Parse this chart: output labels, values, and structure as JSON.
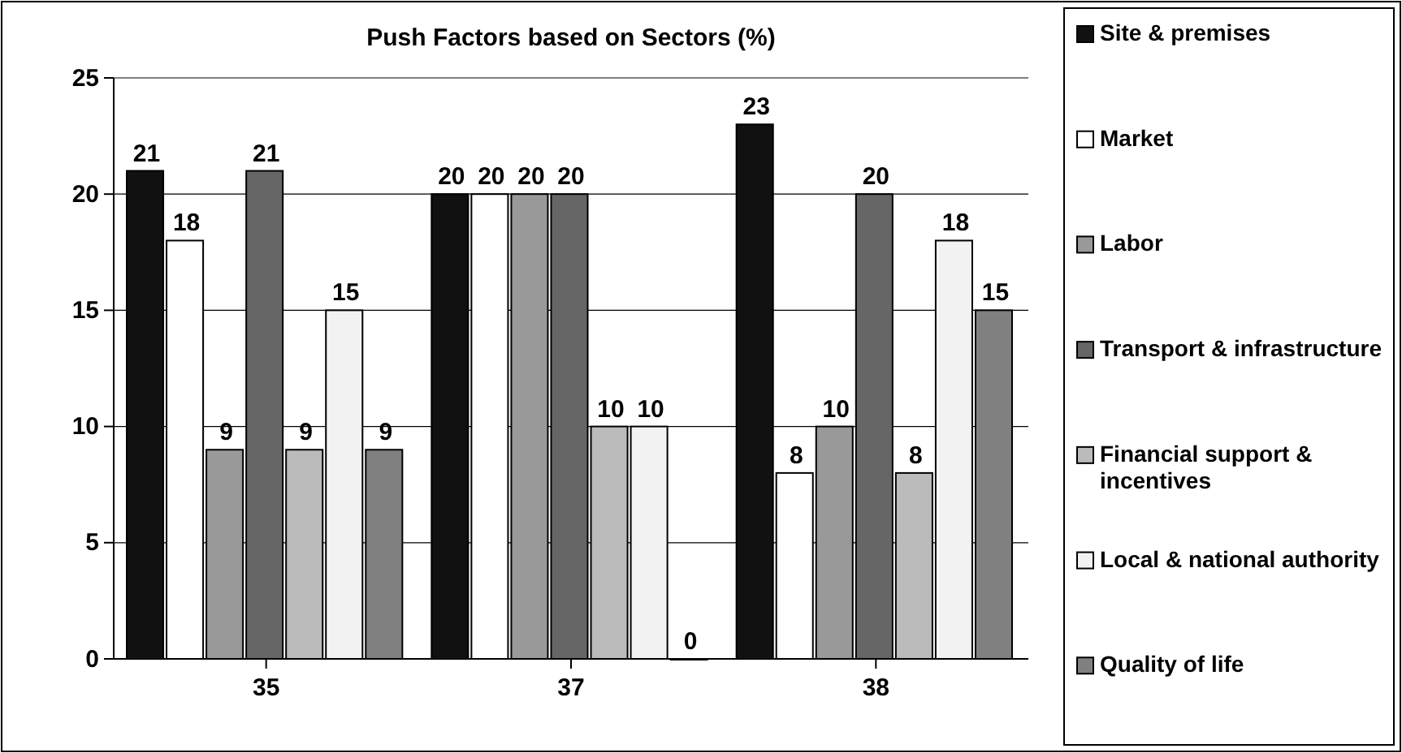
{
  "chart_data": {
    "type": "bar",
    "title": "Push Factors based on Sectors (%)",
    "categories": [
      "35",
      "37",
      "38"
    ],
    "series": [
      {
        "name": "Site & premises",
        "color": "#111111",
        "values": [
          21,
          20,
          23
        ]
      },
      {
        "name": "Market",
        "color": "#ffffff",
        "values": [
          18,
          20,
          8
        ]
      },
      {
        "name": "Labor",
        "color": "#999999",
        "values": [
          9,
          20,
          10
        ]
      },
      {
        "name": "Transport & infrastructure",
        "color": "#666666",
        "values": [
          21,
          20,
          20
        ]
      },
      {
        "name": "Financial support & incentives",
        "color": "#bbbbbb",
        "values": [
          9,
          10,
          8
        ]
      },
      {
        "name": "Local & national authority",
        "color": "#f2f2f2",
        "values": [
          15,
          10,
          18
        ]
      },
      {
        "name": "Quality of life",
        "color": "#808080",
        "values": [
          9,
          0,
          15
        ]
      }
    ],
    "ylim": [
      0,
      25
    ],
    "yticks": [
      0,
      5,
      10,
      15,
      20,
      25
    ],
    "grid": "y",
    "legend": "right",
    "data_labels": true
  }
}
